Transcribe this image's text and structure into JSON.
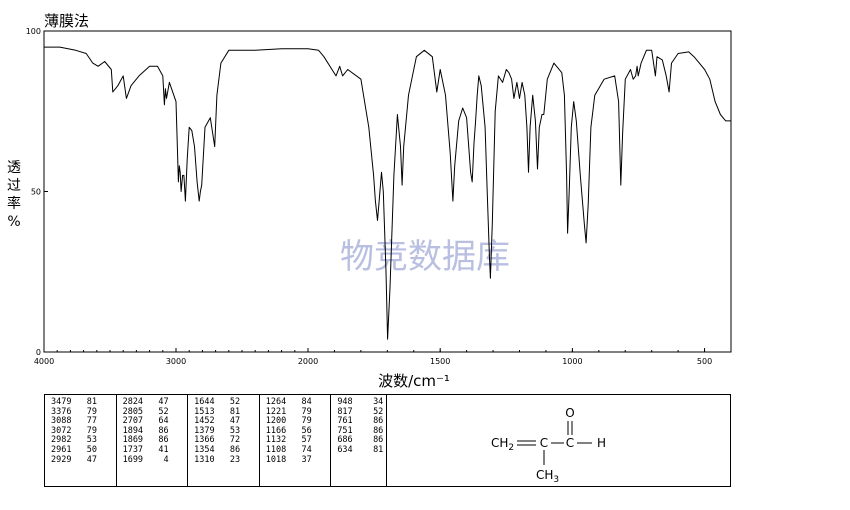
{
  "title": "薄膜法",
  "watermark": "物竞数据库",
  "chart_data": {
    "type": "line",
    "xlabel": "波数/cm⁻¹",
    "ylabel": "透过率%",
    "xlim": [
      4000,
      400
    ],
    "ylim": [
      0,
      100
    ],
    "x_ticks": [
      "4000",
      "3000",
      "2000",
      "1500",
      "1000",
      "500"
    ],
    "y_ticks": [
      "100",
      "50",
      "0"
    ],
    "grid": false,
    "series": [
      {
        "color": "#000000",
        "points": [
          [
            4000,
            95
          ],
          [
            3880,
            95
          ],
          [
            3760,
            94
          ],
          [
            3680,
            93
          ],
          [
            3630,
            90
          ],
          [
            3590,
            89
          ],
          [
            3540,
            90.5
          ],
          [
            3490,
            88
          ],
          [
            3479,
            81
          ],
          [
            3440,
            83
          ],
          [
            3400,
            86
          ],
          [
            3376,
            79
          ],
          [
            3340,
            83
          ],
          [
            3280,
            86
          ],
          [
            3200,
            89
          ],
          [
            3140,
            89
          ],
          [
            3100,
            86
          ],
          [
            3088,
            77
          ],
          [
            3080,
            82
          ],
          [
            3072,
            79
          ],
          [
            3050,
            84
          ],
          [
            3000,
            78
          ],
          [
            2982,
            53
          ],
          [
            2975,
            58
          ],
          [
            2968,
            56
          ],
          [
            2961,
            50
          ],
          [
            2950,
            55
          ],
          [
            2940,
            55
          ],
          [
            2929,
            47
          ],
          [
            2915,
            60
          ],
          [
            2900,
            70
          ],
          [
            2880,
            69
          ],
          [
            2860,
            64
          ],
          [
            2840,
            53
          ],
          [
            2824,
            47
          ],
          [
            2815,
            50
          ],
          [
            2805,
            52
          ],
          [
            2780,
            70
          ],
          [
            2740,
            73
          ],
          [
            2707,
            64
          ],
          [
            2690,
            80
          ],
          [
            2660,
            90
          ],
          [
            2600,
            94
          ],
          [
            2400,
            94
          ],
          [
            2200,
            94.5
          ],
          [
            2000,
            94.5
          ],
          [
            1960,
            94
          ],
          [
            1940,
            92
          ],
          [
            1894,
            86
          ],
          [
            1880,
            89
          ],
          [
            1869,
            86
          ],
          [
            1850,
            88
          ],
          [
            1800,
            85
          ],
          [
            1770,
            70
          ],
          [
            1752,
            55
          ],
          [
            1745,
            47
          ],
          [
            1737,
            41
          ],
          [
            1730,
            48
          ],
          [
            1722,
            56
          ],
          [
            1715,
            50
          ],
          [
            1705,
            25
          ],
          [
            1699,
            4
          ],
          [
            1690,
            20
          ],
          [
            1675,
            55
          ],
          [
            1662,
            74
          ],
          [
            1650,
            64
          ],
          [
            1644,
            52
          ],
          [
            1638,
            64
          ],
          [
            1620,
            80
          ],
          [
            1590,
            92
          ],
          [
            1560,
            94
          ],
          [
            1530,
            92
          ],
          [
            1513,
            81
          ],
          [
            1500,
            88
          ],
          [
            1480,
            80
          ],
          [
            1470,
            70
          ],
          [
            1462,
            62
          ],
          [
            1452,
            47
          ],
          [
            1445,
            58
          ],
          [
            1430,
            72
          ],
          [
            1415,
            76
          ],
          [
            1400,
            73
          ],
          [
            1385,
            56
          ],
          [
            1379,
            53
          ],
          [
            1372,
            65
          ],
          [
            1366,
            72
          ],
          [
            1360,
            80
          ],
          [
            1354,
            86
          ],
          [
            1345,
            83
          ],
          [
            1330,
            70
          ],
          [
            1322,
            50
          ],
          [
            1314,
            30
          ],
          [
            1310,
            23
          ],
          [
            1303,
            40
          ],
          [
            1292,
            75
          ],
          [
            1280,
            86
          ],
          [
            1264,
            84
          ],
          [
            1250,
            88
          ],
          [
            1240,
            87
          ],
          [
            1230,
            85
          ],
          [
            1221,
            79
          ],
          [
            1210,
            84
          ],
          [
            1200,
            79
          ],
          [
            1190,
            84
          ],
          [
            1180,
            80
          ],
          [
            1172,
            70
          ],
          [
            1166,
            56
          ],
          [
            1160,
            70
          ],
          [
            1150,
            80
          ],
          [
            1140,
            72
          ],
          [
            1132,
            57
          ],
          [
            1125,
            70
          ],
          [
            1115,
            74
          ],
          [
            1108,
            74
          ],
          [
            1095,
            85
          ],
          [
            1070,
            90
          ],
          [
            1040,
            87
          ],
          [
            1030,
            80
          ],
          [
            1022,
            55
          ],
          [
            1018,
            37
          ],
          [
            1012,
            50
          ],
          [
            1004,
            70
          ],
          [
            995,
            78
          ],
          [
            985,
            72
          ],
          [
            970,
            55
          ],
          [
            955,
            40
          ],
          [
            948,
            34
          ],
          [
            940,
            46
          ],
          [
            930,
            70
          ],
          [
            915,
            80
          ],
          [
            880,
            85
          ],
          [
            840,
            86
          ],
          [
            825,
            78
          ],
          [
            817,
            52
          ],
          [
            810,
            68
          ],
          [
            800,
            85
          ],
          [
            780,
            88
          ],
          [
            770,
            85
          ],
          [
            761,
            86
          ],
          [
            755,
            89
          ],
          [
            751,
            86
          ],
          [
            740,
            90
          ],
          [
            720,
            94
          ],
          [
            700,
            94
          ],
          [
            686,
            86
          ],
          [
            680,
            92
          ],
          [
            660,
            91
          ],
          [
            645,
            86
          ],
          [
            634,
            81
          ],
          [
            625,
            90
          ],
          [
            600,
            93
          ],
          [
            560,
            93.5
          ],
          [
            540,
            92
          ],
          [
            520,
            90
          ],
          [
            500,
            88
          ],
          [
            480,
            85
          ],
          [
            460,
            78
          ],
          [
            440,
            74
          ],
          [
            420,
            72
          ],
          [
            400,
            72
          ]
        ]
      }
    ]
  },
  "peak_table": {
    "columns": [
      [
        [
          "3479",
          "81"
        ],
        [
          "3376",
          "79"
        ],
        [
          "3088",
          "77"
        ],
        [
          "3072",
          "79"
        ],
        [
          "2982",
          "53"
        ],
        [
          "2961",
          "50"
        ],
        [
          "2929",
          "47"
        ]
      ],
      [
        [
          "2824",
          "47"
        ],
        [
          "2805",
          "52"
        ],
        [
          "2707",
          "64"
        ],
        [
          "1894",
          "86"
        ],
        [
          "1869",
          "86"
        ],
        [
          "1737",
          "41"
        ],
        [
          "1699",
          "4"
        ]
      ],
      [
        [
          "1644",
          "52"
        ],
        [
          "1513",
          "81"
        ],
        [
          "1452",
          "47"
        ],
        [
          "1379",
          "53"
        ],
        [
          "1366",
          "72"
        ],
        [
          "1354",
          "86"
        ],
        [
          "1310",
          "23"
        ]
      ],
      [
        [
          "1264",
          "84"
        ],
        [
          "1221",
          "79"
        ],
        [
          "1200",
          "79"
        ],
        [
          "1166",
          "56"
        ],
        [
          "1132",
          "57"
        ],
        [
          "1108",
          "74"
        ],
        [
          "1018",
          "37"
        ]
      ],
      [
        [
          "948",
          "34"
        ],
        [
          "817",
          "52"
        ],
        [
          "761",
          "86"
        ],
        [
          "751",
          "86"
        ],
        [
          "686",
          "86"
        ],
        [
          "634",
          "81"
        ]
      ]
    ]
  },
  "structure": {
    "o_label": "O",
    "ch2_label": "CH",
    "ch2_sub": "2",
    "c1_label": "C",
    "c2_label": "C",
    "h_label": "H",
    "ch3_label": "CH",
    "ch3_sub": "3"
  }
}
